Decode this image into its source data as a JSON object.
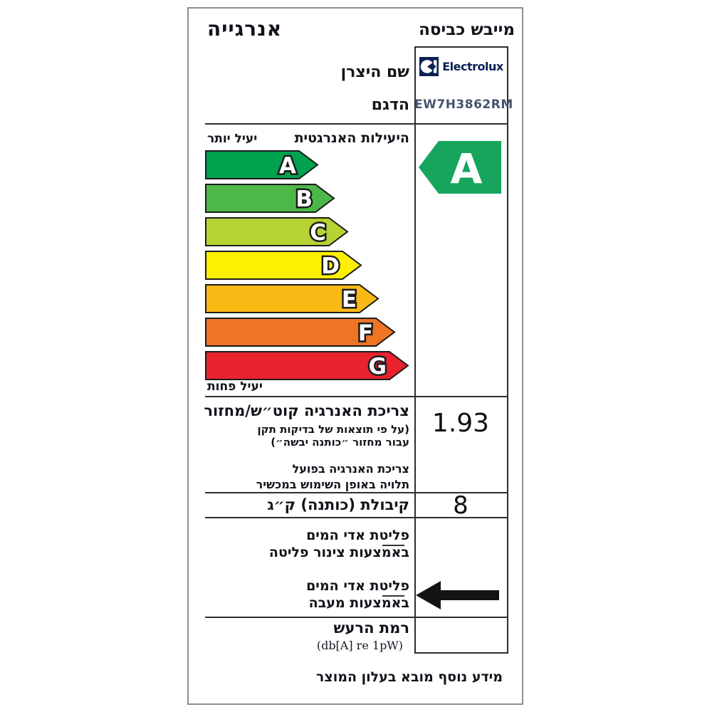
{
  "header": {
    "energy_title": "אנרגייה",
    "appliance_title": "מייבש כביסה"
  },
  "brand": {
    "manufacturer_label": "שם היצרן",
    "model_label": "הדגם",
    "logo_text": "Electrolux",
    "logo_color": "#0c2055",
    "model": "EW7H3862RM"
  },
  "efficiency": {
    "section_label": "היעילות האנרגטית",
    "more_efficient": "יעיל יותר",
    "less_efficient": "יעיל פחות",
    "rating": "A",
    "rating_color": "#17a55e",
    "ratings": [
      {
        "letter": "A",
        "color": "#00a24f",
        "length": 158
      },
      {
        "letter": "B",
        "color": "#4db748",
        "length": 181
      },
      {
        "letter": "C",
        "color": "#b5d332",
        "length": 200
      },
      {
        "letter": "D",
        "color": "#fdf000",
        "length": 219
      },
      {
        "letter": "E",
        "color": "#fbb916",
        "length": 243
      },
      {
        "letter": "F",
        "color": "#ef7423",
        "length": 266
      },
      {
        "letter": "G",
        "color": "#e8232e",
        "length": 285
      }
    ]
  },
  "rows": {
    "energy": {
      "label_line1": "צריכת האנרגיה קוט״ש/מחזור",
      "label_line2": "(על פי תוצאות של בדיקות תקן",
      "label_line3": "עבור מחזור ״כותנה יבשה״)",
      "note_line1": "צריכת האנרגיה בפועל",
      "note_line2": "תלויה באופן השימוש במכשיר",
      "value": "1.93"
    },
    "capacity": {
      "label": "קיבולת (כותנה) ק״ג",
      "value": "8"
    },
    "vapor_pipe": {
      "label_line1": "פליטת אדי המים",
      "label_line2": "באמצעות צינור פליטה"
    },
    "vapor_condenser": {
      "label_line1": "פליטת אדי המים",
      "label_line2": "באמצעות מעבה"
    },
    "noise": {
      "label": "רמת הרעש",
      "unit": "(db[A] re 1pW)"
    }
  },
  "footer": {
    "note": "מידע נוסף מובא בעלון המוצר"
  }
}
